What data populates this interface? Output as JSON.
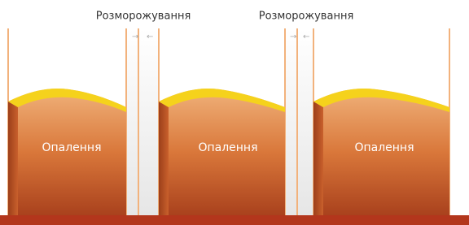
{
  "defrost_labels": [
    "Розморожування",
    "Розморожування"
  ],
  "heating_labels": [
    "Опалення",
    "Опалення",
    "Опалення"
  ]
}
